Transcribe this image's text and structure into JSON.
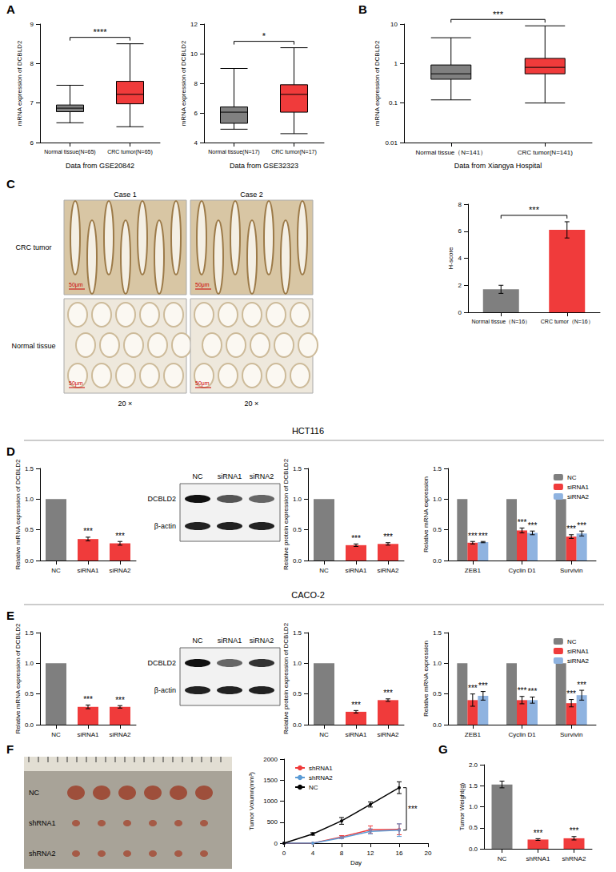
{
  "chart_data": [
    {
      "panel": "A",
      "type": "boxplot",
      "title": "Data from GSE20842",
      "y_label": "mRNA expression of DCBLD2",
      "categories": [
        "Normal tissue(N=65)",
        "CRC tumor(N=65)"
      ],
      "boxes": [
        [
          6.5,
          6.78,
          6.87,
          6.95,
          7.45
        ],
        [
          6.4,
          6.98,
          7.22,
          7.55,
          8.5
        ]
      ],
      "colors": [
        "#808080",
        "#f03b3b"
      ],
      "ylim": [
        6,
        9
      ],
      "yticks": [
        6,
        7,
        8,
        9
      ],
      "significance": "****"
    },
    {
      "type": "boxplot",
      "title": "Data from GSE32323",
      "y_label": "mRNA expression of DCBLD2",
      "categories": [
        "Normal tissue(N=17)",
        "CRC tumor(N=17)"
      ],
      "boxes": [
        [
          4.9,
          5.3,
          6.05,
          6.4,
          9.0
        ],
        [
          4.6,
          6.05,
          7.25,
          7.9,
          10.4
        ]
      ],
      "colors": [
        "#808080",
        "#f03b3b"
      ],
      "ylim": [
        4,
        12
      ],
      "yticks": [
        4,
        6,
        8,
        10,
        12
      ],
      "significance": "*"
    },
    {
      "panel": "B",
      "type": "boxplot",
      "title": "Data from Xiangya Hospital",
      "y_label": "mRNA expression of DCBLD2",
      "categories": [
        "Normal tissue（N=141）",
        "CRC tumor(N=141)"
      ],
      "boxes": [
        [
          0.12,
          0.4,
          0.55,
          0.92,
          4.5
        ],
        [
          0.1,
          0.55,
          0.8,
          1.35,
          9
        ]
      ],
      "colors": [
        "#808080",
        "#f03b3b"
      ],
      "ylim": [
        0.01,
        10
      ],
      "yticks": [
        0.01,
        0.1,
        1,
        10
      ],
      "log": "y",
      "significance": "***"
    },
    {
      "panel": "C",
      "type": "bar",
      "y_label": "H-score",
      "categories": [
        "Normal tissue（N=16）",
        "CRC tumor（N=16）"
      ],
      "values": [
        1.7,
        6.1
      ],
      "errors": [
        0.3,
        0.6
      ],
      "colors": [
        "#7f7f7f",
        "#f03b3b"
      ],
      "ylim": [
        0,
        8
      ],
      "yticks": [
        0,
        2,
        4,
        6,
        8
      ],
      "significance": "***"
    },
    {
      "panel": "D",
      "type": "bar",
      "y_label": "Relative mRNA expression of DCBLD2",
      "categories": [
        "NC",
        "siRNA1",
        "siRNA2"
      ],
      "values": [
        1,
        0.35,
        0.28
      ],
      "errors": [
        null,
        0.03,
        0.03
      ],
      "annotations": [
        null,
        "***",
        "***"
      ],
      "colors": [
        "#7f7f7f",
        "#f03b3b",
        "#f03b3b"
      ],
      "ylim": [
        0,
        1.5
      ],
      "yticks": [
        {
          "value": 0,
          "label": "0.0"
        },
        {
          "value": 0.5,
          "label": "0.5"
        },
        {
          "value": 1,
          "label": "1.0"
        },
        {
          "value": 1.5,
          "label": "1.5"
        }
      ]
    },
    {
      "type": "bar",
      "y_label": "Relative protein expression of DCBLD2",
      "categories": [
        "NC",
        "siRNA1",
        "siRNA2"
      ],
      "values": [
        1,
        0.25,
        0.27
      ],
      "errors": [
        null,
        0.02,
        0.02
      ],
      "annotations": [
        null,
        "***",
        "***"
      ],
      "colors": [
        "#7f7f7f",
        "#f03b3b",
        "#f03b3b"
      ],
      "ylim": [
        0,
        1.5
      ],
      "yticks": [
        {
          "value": 0,
          "label": "0.0"
        },
        {
          "value": 0.5,
          "label": "0.5"
        },
        {
          "value": 1,
          "label": "1.0"
        },
        {
          "value": 1.5,
          "label": "1.5"
        }
      ]
    },
    {
      "type": "bar",
      "y_label": "Relative mRNA expression",
      "categories": [
        "ZEB1",
        "Cyclin D1",
        "Survivin"
      ],
      "series": [
        {
          "name": "NC",
          "color": "#7f7f7f",
          "values": [
            1,
            1,
            1
          ]
        },
        {
          "name": "siRNA1",
          "color": "#f03b3b",
          "values": [
            0.29,
            0.49,
            0.39
          ],
          "errors": [
            0.02,
            0.04,
            0.03
          ],
          "annotations": [
            "***",
            "***",
            "***"
          ]
        },
        {
          "name": "siRNA2",
          "color": "#8fb3e0",
          "values": [
            0.3,
            0.45,
            0.44
          ],
          "errors": [
            0.01,
            0.03,
            0.04
          ],
          "annotations": [
            "***",
            "***",
            "***"
          ]
        }
      ],
      "legend": "top-right",
      "ylim": [
        0,
        1.5
      ],
      "yticks": [
        {
          "value": 0,
          "label": "0.0"
        },
        {
          "value": 0.5,
          "label": "0.5"
        },
        {
          "value": 1,
          "label": "1.0"
        },
        {
          "value": 1.5,
          "label": "1.5"
        }
      ]
    },
    {
      "panel": "E",
      "type": "bar",
      "y_label": "Relative mRNA expression of DCBLD2",
      "categories": [
        "NC",
        "siRNA1",
        "siRNA2"
      ],
      "values": [
        1,
        0.29,
        0.29
      ],
      "errors": [
        null,
        0.03,
        0.02
      ],
      "annotations": [
        null,
        "***",
        "***"
      ],
      "colors": [
        "#7f7f7f",
        "#f03b3b",
        "#f03b3b"
      ],
      "ylim": [
        0,
        1.5
      ],
      "yticks": [
        {
          "value": 0,
          "label": "0.0"
        },
        {
          "value": 0.5,
          "label": "0.5"
        },
        {
          "value": 1,
          "label": "1.0"
        },
        {
          "value": 1.5,
          "label": "1.5"
        }
      ]
    },
    {
      "type": "bar",
      "y_label": "Relative protein expression of DCBLD2",
      "categories": [
        "NC",
        "siRNA1",
        "siRNA2"
      ],
      "values": [
        1,
        0.21,
        0.4
      ],
      "errors": [
        null,
        0.02,
        0.02
      ],
      "annotations": [
        null,
        "***",
        "***"
      ],
      "colors": [
        "#7f7f7f",
        "#f03b3b",
        "#f03b3b"
      ],
      "ylim": [
        0,
        1.5
      ],
      "yticks": [
        {
          "value": 0,
          "label": "0.0"
        },
        {
          "value": 0.5,
          "label": "0.5"
        },
        {
          "value": 1,
          "label": "1.0"
        },
        {
          "value": 1.5,
          "label": "1.5"
        }
      ]
    },
    {
      "type": "bar",
      "y_label": "Relative mRNA expression",
      "categories": [
        "ZEB1",
        "Cyclin D1",
        "Survivin"
      ],
      "series": [
        {
          "name": "NC",
          "color": "#7f7f7f",
          "values": [
            1,
            1,
            1
          ]
        },
        {
          "name": "siRNA1",
          "color": "#f03b3b",
          "values": [
            0.4,
            0.4,
            0.35
          ],
          "errors": [
            0.1,
            0.06,
            0.06
          ],
          "annotations": [
            "***",
            "***",
            "***"
          ]
        },
        {
          "name": "siRNA2",
          "color": "#8fb3e0",
          "values": [
            0.47,
            0.4,
            0.48
          ],
          "errors": [
            0.07,
            0.05,
            0.08
          ],
          "annotations": [
            "***",
            "***",
            "***"
          ]
        }
      ],
      "legend": "top-right",
      "ylim": [
        0,
        1.5
      ],
      "yticks": [
        {
          "value": 0,
          "label": "0.0"
        },
        {
          "value": 0.5,
          "label": "0.5"
        },
        {
          "value": 1,
          "label": "1.0"
        },
        {
          "value": 1.5,
          "label": "1.5"
        }
      ]
    },
    {
      "panel": "F",
      "type": "line",
      "x_label": "Day",
      "y_label": "Tumor Volumn(mm³)",
      "marker": "circle",
      "x": [
        0,
        4,
        8,
        12,
        16
      ],
      "series": [
        {
          "name": "shRNA1",
          "color": "#f03b3b",
          "values": [
            0,
            0,
            150,
            320,
            330
          ],
          "errors": [
            0,
            0,
            30,
            90,
            130
          ]
        },
        {
          "name": "shRNA2",
          "color": "#5b9bd5",
          "values": [
            0,
            0,
            130,
            280,
            310
          ],
          "errors": [
            0,
            0,
            20,
            60,
            150
          ]
        },
        {
          "name": "NC",
          "color": "#000000",
          "values": [
            0,
            220,
            530,
            920,
            1320
          ],
          "errors": [
            0,
            30,
            80,
            60,
            140
          ]
        }
      ],
      "legend": "top-left",
      "xlim": [
        0,
        20
      ],
      "xticks": [
        0,
        4,
        8,
        12,
        16,
        20
      ],
      "ylim": [
        0,
        2000
      ],
      "yticks": [
        0,
        500,
        1000,
        1500,
        2000
      ],
      "significance": "***"
    },
    {
      "panel": "G",
      "type": "bar",
      "y_label": "Tumor Weight(g)",
      "categories": [
        "NC",
        "shRNA1",
        "shRNA2"
      ],
      "values": [
        1.53,
        0.22,
        0.25
      ],
      "errors": [
        0.08,
        0.02,
        0.04
      ],
      "annotations": [
        null,
        "***",
        "***"
      ],
      "colors": [
        "#7f7f7f",
        "#f03b3b",
        "#f03b3b"
      ],
      "ylim": [
        0,
        2
      ],
      "yticks": [
        {
          "value": 0,
          "label": "0.0"
        },
        {
          "value": 0.5,
          "label": "0.5"
        },
        {
          "value": 1,
          "label": "1.0"
        },
        {
          "value": 1.5,
          "label": "1.5"
        },
        {
          "value": 2,
          "label": "2.0"
        }
      ]
    }
  ],
  "sections": [
    "HCT116",
    "CACO-2"
  ],
  "images": {
    "ihc": {
      "columns": [
        "Case 1",
        "Case 2"
      ],
      "rows": [
        "CRC tumor",
        "Normal tissue"
      ],
      "scale_bar": "50μm",
      "magnification": "20 ×"
    },
    "blot": {
      "lanes": [
        "NC",
        "siRNA1",
        "siRNA2"
      ],
      "rows": [
        "DCBLD2",
        "β-actin"
      ]
    },
    "tumors": {
      "rows": [
        "NC",
        "shRNA1",
        "shRNA2"
      ]
    }
  }
}
